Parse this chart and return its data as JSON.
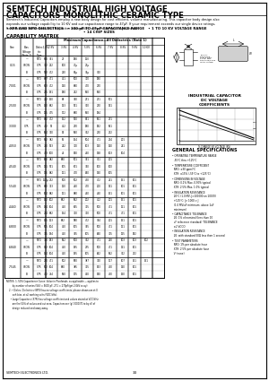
{
  "title": "SEMTECH INDUSTRIAL HIGH VOLTAGE\nCAPACITORS MONOLITHIC CERAMIC TYPE",
  "subtitle": "Semtech's Industrial Capacitors employ a new body design for cost efficient, volume manufacturing. This capacitor body design also\nexpands our voltage capability to 10 KV and our capacitance range to 47μF. If your requirement exceeds our single device ratings,\nSemtech can build monolithic capacitor assemblies to reach the values you need.",
  "bullet1": "• XFR AND NPO DIELECTRICS   • 100 pF TO 47μF CAPACITANCE RANGE   • 1 TO 10 KV VOLTAGE RANGE",
  "bullet2": "• 14 CHIP SIZES",
  "cap_matrix_title": "CAPABILITY MATRIX",
  "table_header2": "Maximum Capacitance—All Dielectrics (Note 1)",
  "bg_color": "#ffffff",
  "page_number": "33",
  "general_specs_title": "GENERAL SPECIFICATIONS",
  "dc_voltage_title": "INDUSTRIAL CAPACITOR\nDC VOLTAGE\nCOEFFICIENTS",
  "footer_left": "SEMTECH ELECTRONICS LTD.",
  "col_headers": [
    "Size",
    "Bias\nVoltage\n(Note 2)",
    "Dielec-\ntric\nType",
    "1 KV",
    "2 KV",
    "3 KV",
    "4 KV",
    "5 KV",
    "6 KV",
    "7 KV",
    "8 KV",
    "9 KV",
    "10 KV"
  ],
  "row_data": [
    [
      "0.15",
      "—",
      "NPO",
      "560",
      "391",
      "27",
      "180",
      "120",
      "",
      "",
      "",
      "",
      ""
    ],
    [
      "0.15",
      "Y5CW",
      "X7R",
      "362",
      "222",
      "100",
      "47μ",
      "27μ",
      "",
      "",
      "",
      "",
      ""
    ],
    [
      "0.15",
      "B",
      "X7R",
      "520",
      "472",
      "220",
      "82μ",
      "39μ",
      "360",
      "",
      "",
      "",
      ""
    ],
    [
      ".7001",
      "—",
      "NPO",
      "687",
      "471",
      "461",
      "500",
      "370",
      "180",
      "",
      "",
      "",
      ""
    ],
    [
      ".7001",
      "Y5CW",
      "X7R",
      "803",
      "472",
      "130",
      "680",
      "470",
      "270",
      "",
      "",
      "",
      ""
    ],
    [
      ".7001",
      "B",
      "X7R",
      "275",
      "191",
      "180",
      "742",
      "560",
      "560",
      "",
      "",
      "",
      ""
    ],
    [
      ".2500",
      "—",
      "NPO",
      "222",
      "150",
      "68",
      "390",
      "271",
      "271",
      "501",
      "",
      "",
      ""
    ],
    [
      ".2500",
      "Y5CW",
      "X7R",
      "150",
      "682",
      "133",
      "521",
      "360",
      "230",
      "141",
      "",
      "",
      ""
    ],
    [
      ".2500",
      "B",
      "X7R",
      "125",
      "475",
      "172",
      "680",
      "560",
      "184",
      "",
      "",
      "",
      ""
    ],
    [
      ".3300",
      "—",
      "NPO",
      "682",
      "472",
      "152",
      "520",
      "821",
      "561",
      "271",
      "",
      "",
      ""
    ],
    [
      ".3300",
      "X7R",
      "X7R",
      "472",
      "52",
      "462",
      "270",
      "180",
      "182",
      "561",
      "",
      "",
      ""
    ],
    [
      ".3300",
      "B",
      "X7R",
      "164",
      "330",
      "54",
      "560",
      "302",
      "230",
      "232",
      "",
      "",
      ""
    ],
    [
      ".4050",
      "—",
      "NPO",
      "562",
      "382",
      "65",
      "154",
      "504",
      "471",
      "234",
      "201",
      "",
      ""
    ],
    [
      ".4050",
      "Y5CW",
      "X7R",
      "750",
      "523",
      "242",
      "370",
      "103",
      "130",
      "130",
      "241",
      "",
      ""
    ],
    [
      ".4050",
      "B",
      "X7R",
      "473",
      "100",
      "44",
      "540",
      "440",
      "148",
      "103",
      "104",
      "",
      ""
    ],
    [
      ".4540",
      "—",
      "NPO",
      "160",
      "482",
      "680",
      "501",
      "391",
      "361",
      "201",
      "",
      "",
      ""
    ],
    [
      ".4540",
      "Y5CW",
      "X7R",
      "131",
      "571",
      "105",
      "601",
      "340",
      "100",
      "100",
      "",
      "",
      ""
    ],
    [
      ".4540",
      "B",
      "X7R",
      "176",
      "882",
      "121",
      "470",
      "840",
      "140",
      "105",
      "",
      "",
      ""
    ],
    [
      ".5540",
      "—",
      "NPO",
      "122μ",
      "272",
      "500",
      "502",
      "430",
      "472",
      "211",
      "151",
      "101",
      ""
    ],
    [
      ".5540",
      "Y5CW",
      "X7R",
      "680",
      "333",
      "120",
      "440",
      "470",
      "200",
      "141",
      "101",
      "101",
      ""
    ],
    [
      ".5540",
      "B",
      "X7R",
      "104",
      "882",
      "121",
      "880",
      "440",
      "440",
      "151",
      "101",
      "101",
      ""
    ],
    [
      ".4440",
      "—",
      "NPO",
      "152",
      "102",
      "682",
      "562",
      "202",
      "412",
      "201",
      "151",
      "101",
      ""
    ],
    [
      ".4440",
      "Y5CW",
      "X7R",
      "194",
      "104",
      "460",
      "625",
      "325",
      "500",
      "471",
      "121",
      "101",
      ""
    ],
    [
      ".4440",
      "B",
      "X7R",
      "274",
      "682",
      "154",
      "320",
      "320",
      "500",
      "471",
      "471",
      "101",
      ""
    ],
    [
      ".6800",
      "—",
      "NPO",
      "155",
      "123",
      "682",
      "580",
      "472",
      "394",
      "201",
      "151",
      "101",
      ""
    ],
    [
      ".6800",
      "Y5CW",
      "X7R",
      "505",
      "104",
      "460",
      "105",
      "395",
      "500",
      "471",
      "121",
      "101",
      ""
    ],
    [
      ".6800",
      "B",
      "X7R",
      "335",
      "194",
      "460",
      "395",
      "105",
      "640",
      "325",
      "125",
      "182",
      ""
    ],
    [
      ".6840",
      "—",
      "NPO",
      "370",
      "183",
      "562",
      "500",
      "302",
      "471",
      "210",
      "103",
      "103",
      "102"
    ],
    [
      ".6840",
      "Y5CW",
      "X7R",
      "542",
      "104",
      "460",
      "195",
      "275",
      "500",
      "471",
      "131",
      "101",
      ""
    ],
    [
      ".6840",
      "B",
      "X7R",
      "154",
      "104",
      "460",
      "195",
      "105",
      "642",
      "562",
      "362",
      "272",
      ""
    ],
    [
      ".7545",
      "—",
      "NPO",
      "270",
      "471",
      "502",
      "690",
      "387",
      "330",
      "117",
      "107",
      "151",
      "151"
    ],
    [
      ".7545",
      "Y5CW",
      "X7R",
      "502",
      "104",
      "680",
      "385",
      "325",
      "543",
      "430",
      "130",
      "101",
      ""
    ],
    [
      ".7545",
      "B",
      "X7R",
      "472",
      "754",
      "560",
      "175",
      "400",
      "540",
      "430",
      "150",
      "101",
      ""
    ]
  ],
  "size_groups": [
    {
      "name": "0.15",
      "rows": 3
    },
    {
      ".7001": ".7001",
      "rows": 3
    },
    {
      ".2500": ".2500",
      "rows": 3
    },
    {
      ".3300": ".3300",
      "rows": 3
    },
    {
      ".4050": ".4050",
      "rows": 3
    },
    {
      ".4540": ".4540",
      "rows": 3
    },
    {
      ".5540": ".5540",
      "rows": 3
    },
    {
      ".4440": ".4440",
      "rows": 3
    },
    {
      ".6800": ".6800",
      "rows": 3
    },
    {
      ".6840": ".6840",
      "rows": 3
    },
    {
      ".7545": ".7545",
      "rows": 3
    }
  ],
  "notes_text": "NOTES: 1. 50% Capacitance Curve: Value in Picofarads, as applicable — applies to model\n         by number of series (563 = 5600 pF, 271 = 270pF/get 2.0kV array).\n    2.• Dielec. Dielectrics (NPO) has no voltage coefficients; please shown are at 0\n         volt bias, at all working volts (VDC/kHz).\n      • Large Capacitors (X7R) has voltage coefficient and values stated at VDC/kHz\n         are the 50% of values and cut area. Capacitors are (g) 1000/70 to buyy a lot of\n         design reduced and away away."
}
